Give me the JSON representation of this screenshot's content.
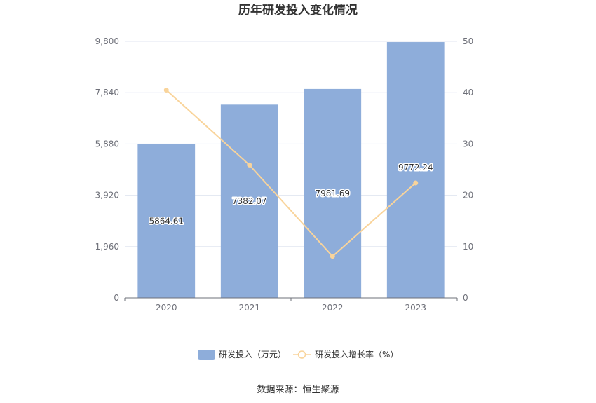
{
  "chart_data": {
    "type": "bar",
    "title": "历年研发投入变化情况",
    "categories": [
      "2020",
      "2021",
      "2022",
      "2023"
    ],
    "series": [
      {
        "name": "研发投入（万元）",
        "type": "bar",
        "axis": "left",
        "values": [
          5864.61,
          7382.07,
          7981.69,
          9772.24
        ],
        "labels": [
          "5864.61",
          "7382.07",
          "7981.69",
          "9772.24"
        ],
        "color": "#8eadda"
      },
      {
        "name": "研发投入增长率（%）",
        "type": "line",
        "axis": "right",
        "values": [
          40.5,
          25.9,
          8.1,
          22.4
        ],
        "color": "#f9d49b"
      }
    ],
    "y_left": {
      "min": 0,
      "max": 9800,
      "ticks": [
        "0",
        "1,960",
        "3,920",
        "5,880",
        "7,840",
        "9,800"
      ]
    },
    "y_right": {
      "min": 0,
      "max": 50,
      "ticks": [
        "0",
        "10",
        "20",
        "30",
        "40",
        "50"
      ]
    },
    "grid": true,
    "legend_position": "bottom",
    "source": "数据来源：恒生聚源"
  }
}
